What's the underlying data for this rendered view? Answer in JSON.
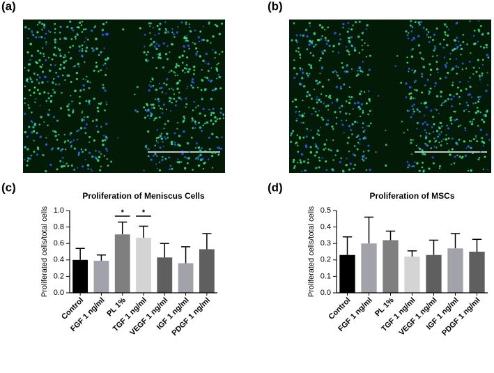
{
  "panels": [
    "(a)",
    "(b)",
    "(c)",
    "(d)"
  ],
  "chart_data": [
    {
      "type": "bar",
      "title": "Proliferation of Meniscus Cells",
      "ylabel": "Proliferated cells/total cells",
      "categories": [
        "Control",
        "FGF 1 ng/ml",
        "PL 1%",
        "TGF 1 ng/ml",
        "VEGF 1 ng/ml",
        "IGF 1 ng/ml",
        "PDGF 1 ng/ml"
      ],
      "values": [
        0.4,
        0.39,
        0.71,
        0.67,
        0.43,
        0.36,
        0.53
      ],
      "errors": [
        0.14,
        0.07,
        0.15,
        0.14,
        0.17,
        0.2,
        0.19
      ],
      "colors": [
        "#000000",
        "#a2a2aa",
        "#7f7f7f",
        "#d4d4d4",
        "#5f5f5f",
        "#a2a2aa",
        "#5f5f5f"
      ],
      "significant": [
        false,
        false,
        true,
        true,
        false,
        false,
        false
      ],
      "significance_label": "*",
      "ylim": [
        0,
        1
      ],
      "yticks": [
        {
          "value": 0,
          "label": "0.0"
        },
        0.2,
        0.4,
        0.6,
        0.8,
        {
          "value": 1,
          "label": "1.0"
        }
      ]
    },
    {
      "type": "bar",
      "title": "Proliferation of MSCs",
      "ylabel": "Proliferated cells/total cells",
      "categories": [
        "Control",
        "FGF 1 ng/ml",
        "PL 1%",
        "TGF 1 ng/ml",
        "VEGF 1 ng/ml",
        "IGF 1 ng/ml",
        "PDGF 1 ng/ml"
      ],
      "values": [
        0.23,
        0.3,
        0.32,
        0.22,
        0.23,
        0.27,
        0.25
      ],
      "errors": [
        0.11,
        0.16,
        0.055,
        0.035,
        0.09,
        0.09,
        0.075
      ],
      "colors": [
        "#000000",
        "#a2a2aa",
        "#7f7f7f",
        "#d4d4d4",
        "#5f5f5f",
        "#a2a2aa",
        "#5f5f5f"
      ],
      "significant": [
        false,
        false,
        false,
        false,
        false,
        false,
        false
      ],
      "ylim": [
        0,
        0.5
      ],
      "yticks": [
        {
          "value": 0,
          "label": "0.0"
        },
        0.1,
        0.2,
        0.3,
        0.4,
        0.5
      ]
    }
  ]
}
